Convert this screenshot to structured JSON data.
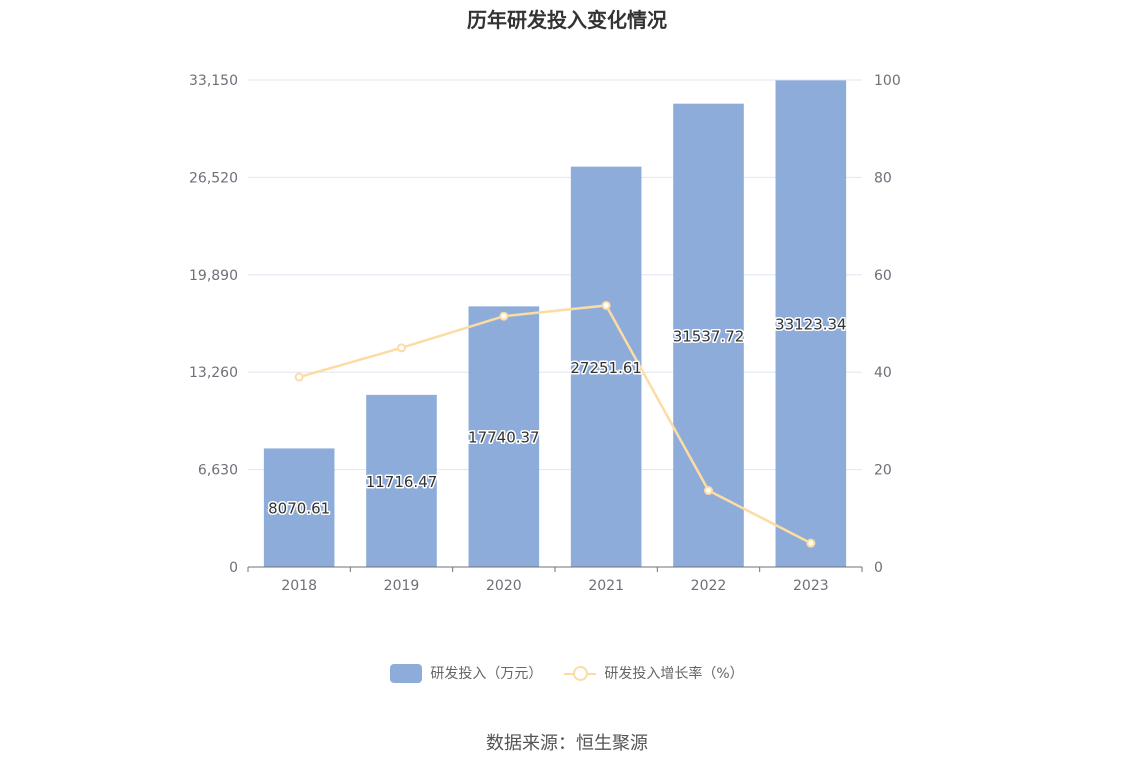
{
  "chart_data": {
    "type": "bar",
    "title": "历年研发投入变化情况",
    "categories": [
      "2018",
      "2019",
      "2020",
      "2021",
      "2022",
      "2023"
    ],
    "series": [
      {
        "name": "研发投入（万元）",
        "type": "bar",
        "axis": "left",
        "values": [
          8070.61,
          11716.47,
          17740.37,
          27251.61,
          31537.72,
          33123.34
        ],
        "data_labels": [
          "8070.61",
          "11716.47",
          "17740.37",
          "27251.61",
          "31537.72",
          "33123.34"
        ],
        "color": "#8eacd9"
      },
      {
        "name": "研发投入增长率（%）",
        "type": "line",
        "axis": "right",
        "values": [
          39.0,
          45.0,
          51.5,
          53.7,
          15.7,
          4.9
        ],
        "color": "#fcdca2"
      }
    ],
    "y_left": {
      "ylim": [
        0,
        33150
      ],
      "ticks": [
        "0",
        "6,630",
        "13,260",
        "19,890",
        "26,520",
        "33,150"
      ]
    },
    "y_right": {
      "ylim": [
        0,
        100
      ],
      "ticks": [
        "0",
        "20",
        "40",
        "60",
        "80",
        "100"
      ]
    },
    "grid": true,
    "legend_position": "bottom"
  },
  "source": "数据来源：恒生聚源"
}
